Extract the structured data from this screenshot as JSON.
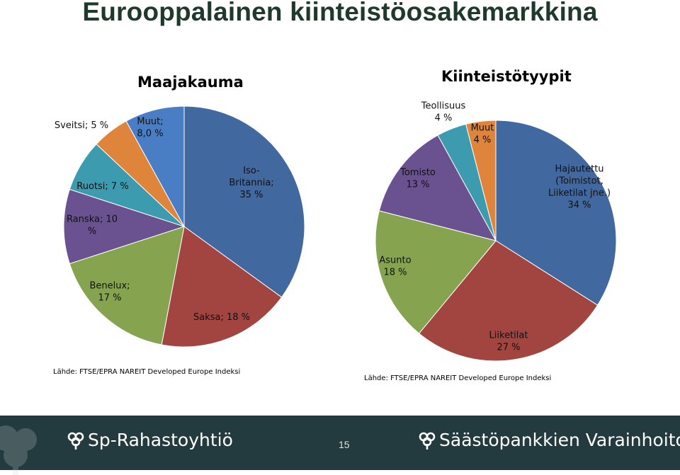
{
  "slide": {
    "title": "Eurooppalainen kiinteistöosakemarkkina",
    "page_number": "15"
  },
  "footer": {
    "brand_left": "Sp-Rahastoyhtiö",
    "brand_right": "Säästöpankkien Varainhoito"
  },
  "chart_data": [
    {
      "type": "pie",
      "title": "Maajakauma",
      "source": "Lähde: FTSE/EPRA NAREIT  Developed Europe Indeksi",
      "slices": [
        {
          "label": "Iso-Britannia; 35 %",
          "label_lines": [
            "Iso-",
            "Britannia;",
            "35 %"
          ],
          "value": 35,
          "color": "#41689f"
        },
        {
          "label": "Saksa; 18 %",
          "label_lines": [
            "Saksa; 18 %"
          ],
          "value": 18,
          "color": "#a2443f"
        },
        {
          "label": "Benelux; 17 %",
          "label_lines": [
            "Benelux;",
            "17 %"
          ],
          "value": 17,
          "color": "#86a44f"
        },
        {
          "label": "Ranska; 10 %",
          "label_lines": [
            "Ranska; 10",
            "%"
          ],
          "value": 10,
          "color": "#6a5190"
        },
        {
          "label": "Ruotsi; 7 %",
          "label_lines": [
            "Ruotsi; 7 %"
          ],
          "value": 7,
          "color": "#3d9bb0"
        },
        {
          "label": "Sveitsi; 5 %",
          "label_lines": [
            "Sveitsi; 5 %"
          ],
          "value": 5,
          "color": "#de843b"
        },
        {
          "label": "Muut; 8,0 %",
          "label_lines": [
            "Muut;",
            "8,0 %"
          ],
          "value": 8,
          "color": "#4a7ec4"
        }
      ]
    },
    {
      "type": "pie",
      "title": "Kiinteistötyypit",
      "source": "Lähde: FTSE/EPRA NAREIT  Developed Europe Indeksi",
      "slices": [
        {
          "label": "Hajautettu (Toimistot, Liiketilat jne.) 34 %",
          "label_lines": [
            "Hajautettu",
            "(Toimistot,",
            "Liiketilat jne.)",
            "34 %"
          ],
          "value": 34,
          "color": "#41689f"
        },
        {
          "label": "Liiketilat 27 %",
          "label_lines": [
            "Liiketilat",
            "27 %"
          ],
          "value": 27,
          "color": "#a2443f"
        },
        {
          "label": "Asunto 18 %",
          "label_lines": [
            "Asunto",
            "18 %"
          ],
          "value": 18,
          "color": "#86a44f"
        },
        {
          "label": "Tomisto 13 %",
          "label_lines": [
            "Tomisto",
            "13 %"
          ],
          "value": 13,
          "color": "#6a5190"
        },
        {
          "label": "Teollisuus 4 %",
          "label_lines": [
            "Teollisuus",
            "4 %"
          ],
          "value": 4,
          "color": "#3d9bb0"
        },
        {
          "label": "Muut 4 %",
          "label_lines": [
            "Muut",
            "4 %"
          ],
          "value": 4,
          "color": "#de843b"
        }
      ]
    }
  ]
}
